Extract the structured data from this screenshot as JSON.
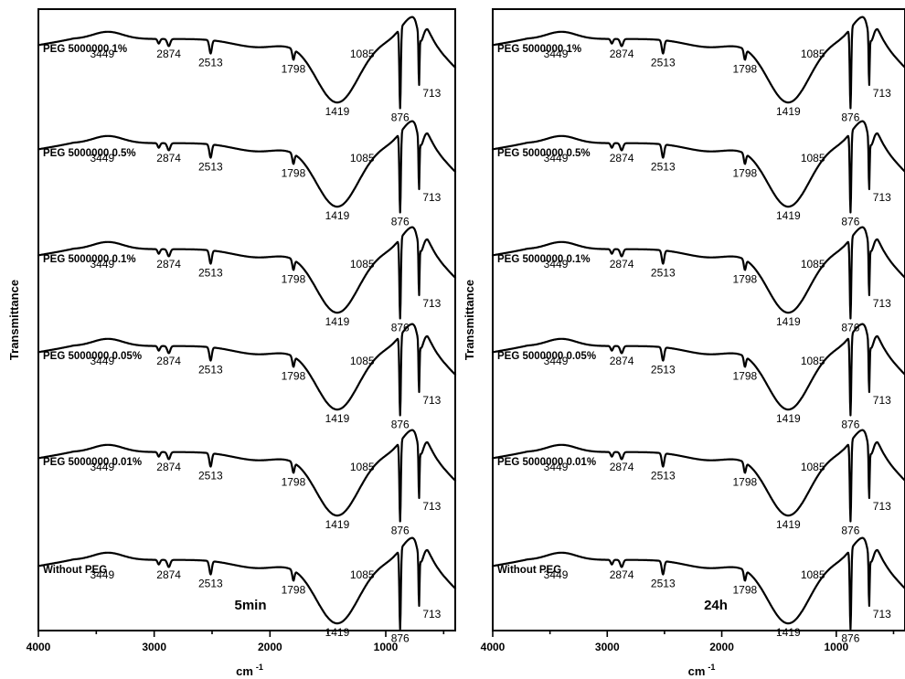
{
  "chart_data": [
    {
      "type": "line",
      "panel_label": "5min",
      "xlabel": "cm -1",
      "ylabel": "Transmittance",
      "xlim": [
        4000,
        400
      ],
      "x_reversed": true,
      "x_ticks": [
        4000,
        3000,
        2000,
        1000
      ],
      "y_ticks_shown": false,
      "grid": false,
      "series": [
        {
          "name": "PEG 5000000 1%",
          "peaks": [
            3449,
            2874,
            2513,
            1798,
            1419,
            1085,
            876,
            713
          ]
        },
        {
          "name": "PEG 5000000 0.5%",
          "peaks": [
            3449,
            2874,
            2513,
            1798,
            1419,
            1085,
            876,
            713
          ]
        },
        {
          "name": "PEG 5000000 0.1%",
          "peaks": [
            3449,
            2874,
            2513,
            1798,
            1419,
            1085,
            876,
            713
          ]
        },
        {
          "name": "PEG 5000000 0.05%",
          "peaks": [
            3449,
            2874,
            2513,
            1798,
            1419,
            1085,
            876,
            713
          ]
        },
        {
          "name": "PEG 5000000 0.01%",
          "peaks": [
            3449,
            2874,
            2513,
            1798,
            1419,
            1085,
            876,
            713
          ]
        },
        {
          "name": "Without PEG",
          "peaks": [
            3449,
            2874,
            2513,
            1798,
            1419,
            1085,
            876,
            713
          ]
        }
      ]
    },
    {
      "type": "line",
      "panel_label": "24h",
      "xlabel": "cm -1",
      "ylabel": "Transmittance",
      "xlim": [
        4000,
        400
      ],
      "x_reversed": true,
      "x_ticks": [
        4000,
        3000,
        2000,
        1000
      ],
      "y_ticks_shown": false,
      "grid": false,
      "series": [
        {
          "name": "PEG 5000000 1%",
          "peaks": [
            3449,
            2874,
            2513,
            1798,
            1419,
            1085,
            876,
            713
          ]
        },
        {
          "name": "PEG 5000000 0.5%",
          "peaks": [
            3449,
            2874,
            2513,
            1798,
            1419,
            1085,
            876,
            713
          ]
        },
        {
          "name": "PEG 5000000 0.1%",
          "peaks": [
            3449,
            2874,
            2513,
            1798,
            1419,
            1085,
            876,
            713
          ]
        },
        {
          "name": "PEG 5000000 0.05%",
          "peaks": [
            3449,
            2874,
            2513,
            1798,
            1419,
            1085,
            876,
            713
          ]
        },
        {
          "name": "PEG 5000000 0.01%",
          "peaks": [
            3449,
            2874,
            2513,
            1798,
            1419,
            1085,
            876,
            713
          ]
        },
        {
          "name": "Without PEG",
          "peaks": [
            3449,
            2874,
            2513,
            1798,
            1419,
            1085,
            876,
            713
          ]
        }
      ]
    }
  ]
}
